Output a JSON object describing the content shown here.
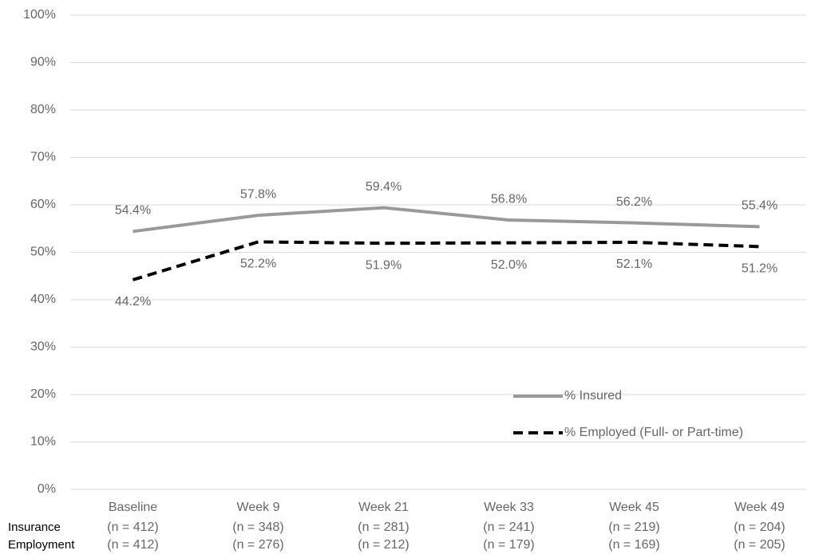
{
  "chart_data": {
    "type": "line",
    "categories": [
      "Baseline",
      "Week 9",
      "Week 21",
      "Week 33",
      "Week 45",
      "Week 49"
    ],
    "series": [
      {
        "name": "% Insured",
        "color": "#999999",
        "dashed": false,
        "values": [
          54.4,
          57.8,
          59.4,
          56.8,
          56.2,
          55.4
        ],
        "value_labels": [
          "54.4%",
          "57.8%",
          "59.4%",
          "56.8%",
          "56.2%",
          "55.4%"
        ]
      },
      {
        "name": "% Employed (Full- or Part-time)",
        "color": "#000000",
        "dashed": true,
        "values": [
          44.2,
          52.2,
          51.9,
          52.0,
          52.1,
          51.2
        ],
        "value_labels": [
          "44.2%",
          "52.2%",
          "51.9%",
          "52.0%",
          "52.1%",
          "51.2%"
        ]
      }
    ],
    "ylim": [
      0,
      100
    ],
    "yticks": [
      {
        "value": 0,
        "label": "0%"
      },
      {
        "value": 10,
        "label": "10%"
      },
      {
        "value": 20,
        "label": "20%"
      },
      {
        "value": 30,
        "label": "30%"
      },
      {
        "value": 40,
        "label": "40%"
      },
      {
        "value": 50,
        "label": "50%"
      },
      {
        "value": 60,
        "label": "60%"
      },
      {
        "value": 70,
        "label": "70%"
      },
      {
        "value": 80,
        "label": "80%"
      },
      {
        "value": 90,
        "label": "90%"
      },
      {
        "value": 100,
        "label": "100%"
      }
    ],
    "grid": true,
    "sample_rows": [
      {
        "label": "Insurance",
        "values": [
          "(n = 412)",
          "(n = 348)",
          "(n = 281)",
          "(n = 241)",
          "(n = 219)",
          "(n = 204)"
        ]
      },
      {
        "label": "Employment",
        "values": [
          "(n = 412)",
          "(n = 276)",
          "(n = 212)",
          "(n = 179)",
          "(n = 169)",
          "(n = 205)"
        ]
      }
    ]
  }
}
